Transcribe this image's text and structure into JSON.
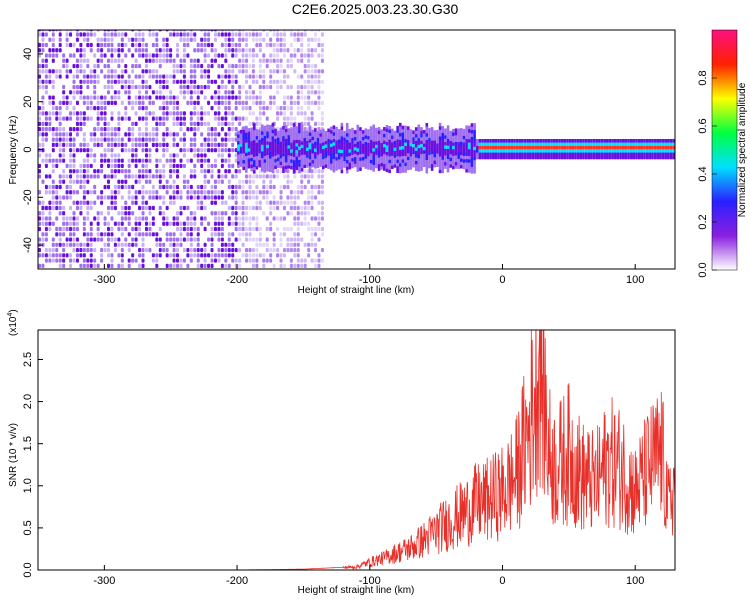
{
  "title": "C2E6.2025.003.23.30.G30",
  "colors": {
    "spec_purple": "#6a0fe0",
    "spec_purple_light": "#c9b0f7",
    "snr_line": "#e8302a",
    "axis": "#000000"
  },
  "chart_data": [
    {
      "type": "heatmap",
      "xlabel": "Height of straight line (km)",
      "ylabel": "Frequency (Hz)",
      "xlim": [
        -350,
        130
      ],
      "ylim": [
        -50,
        50
      ],
      "x_ticks": [
        -300,
        -200,
        -100,
        0,
        100
      ],
      "y_ticks": [
        -40,
        -20,
        0,
        20,
        40
      ],
      "colorbar": {
        "label": "Normalized spectral amplitude",
        "range": [
          0,
          1
        ],
        "ticks": [
          "0.0",
          "0.2",
          "0.4",
          "0.6",
          "0.8"
        ],
        "colormap": [
          "#ffffff",
          "#8a1fe0",
          "#2a20ff",
          "#00e0ff",
          "#00ff40",
          "#ffff00",
          "#ff2000",
          "#ff1080"
        ]
      },
      "features": [
        {
          "description": "broadband noise",
          "x_range": [
            -350,
            -135
          ],
          "freq_range": [
            -50,
            50
          ],
          "amplitude": 0.15
        },
        {
          "description": "signal band",
          "x_range": [
            -200,
            130
          ],
          "center_hz": 0,
          "half_width_hz": 5,
          "amplitude": 0.4
        },
        {
          "description": "strong carrier",
          "x_range": [
            -20,
            130
          ],
          "center_hz": 0,
          "amplitude": 0.9
        }
      ]
    },
    {
      "type": "line",
      "xlabel": "Height of straight line (km)",
      "ylabel": "SNR (10 * v/v)",
      "scale_note": "(x10",
      "scale_exp": "4",
      "xlim": [
        -350,
        130
      ],
      "ylim": [
        0,
        2.85
      ],
      "x_ticks": [
        -300,
        -200,
        -100,
        0,
        100
      ],
      "y_ticks": [
        "0.0",
        "0.5",
        "1.0",
        "1.5",
        "2.0",
        "2.5"
      ],
      "series": [
        {
          "x": [
            -350,
            -300,
            -250,
            -200,
            -150,
            -110,
            -100,
            -90,
            -80,
            -70,
            -60,
            -50,
            -40,
            -30,
            -20,
            -10,
            0,
            10,
            20,
            25,
            28,
            30,
            35,
            40,
            50,
            60,
            70,
            80,
            90,
            100,
            110,
            120,
            125,
            130
          ],
          "values": [
            0.0,
            0.0,
            0.0,
            0.0,
            0.01,
            0.04,
            0.1,
            0.15,
            0.22,
            0.28,
            0.38,
            0.5,
            0.62,
            0.72,
            0.85,
            0.9,
            1.0,
            1.2,
            1.8,
            2.3,
            2.8,
            2.5,
            1.5,
            1.3,
            1.5,
            1.2,
            1.1,
            1.4,
            1.3,
            1.0,
            1.3,
            1.5,
            0.8,
            1.1
          ]
        }
      ]
    }
  ]
}
